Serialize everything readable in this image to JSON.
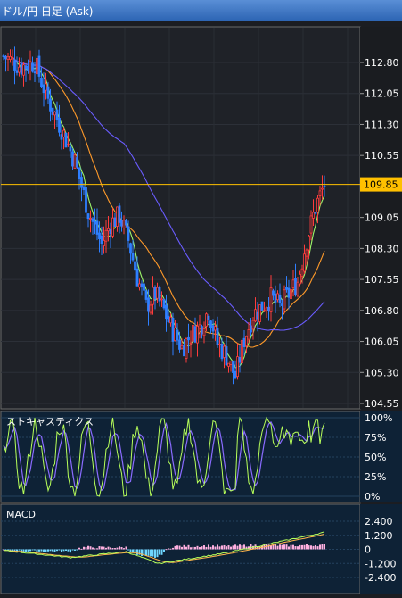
{
  "window": {
    "title": "ドル/円 日足 (Ask)"
  },
  "price_panel": {
    "y_ticks": [
      "112.80",
      "112.05",
      "111.30",
      "110.55",
      "109.05",
      "108.30",
      "107.55",
      "106.80",
      "106.05",
      "105.30",
      "104.55"
    ],
    "current_price": "109.85",
    "colors": {
      "up": "#ff3c3c",
      "down": "#2f7fff",
      "line_fast": "#9cf56a",
      "line_mid": "#ff9a2a",
      "line_slow": "#6a5cff",
      "price_line": "#ffc000"
    }
  },
  "stochastics_panel": {
    "label": "ストキャスティクス",
    "y_ticks": [
      "100%",
      "75%",
      "50%",
      "25%",
      "0%"
    ],
    "colors": {
      "k": "#b7ff5a",
      "d": "#8a6bff"
    }
  },
  "macd_panel": {
    "label": "MACD",
    "y_ticks": [
      "2.400",
      "1.200",
      "0",
      "-1.200",
      "-2.400"
    ],
    "colors": {
      "hist_pos": "#ffb0e0",
      "hist_neg": "#6fd7ff",
      "macd": "#b7ff5a",
      "signal": "#ffb54a"
    }
  },
  "chart_data": {
    "type": "candlestick",
    "price_axis": {
      "min": 104.55,
      "max": 112.8
    },
    "current_price": 109.85,
    "stochastic_axis": {
      "min": 0,
      "max": 100
    },
    "macd_axis": {
      "min": -2.4,
      "max": 2.4
    }
  }
}
